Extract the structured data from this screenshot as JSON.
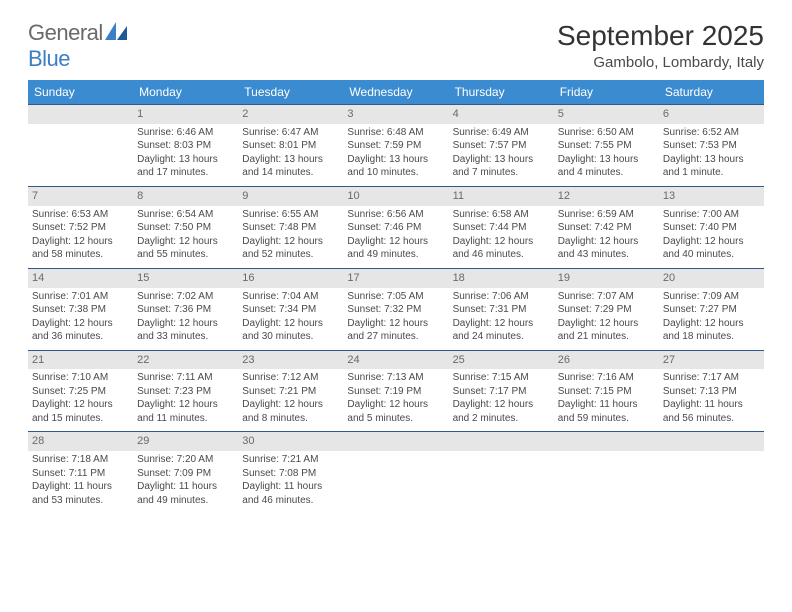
{
  "brand": {
    "general": "General",
    "blue": "Blue"
  },
  "title": "September 2025",
  "location": "Gambolo, Lombardy, Italy",
  "colors": {
    "header_bg": "#3b8bd0",
    "header_text": "#ffffff",
    "daynum_bg": "#e6e6e6",
    "daynum_text": "#6a6a6a",
    "border": "#2d5a8a",
    "body_text": "#4a4a4a",
    "logo_blue": "#3b7fc4",
    "logo_gray": "#6a6a6a"
  },
  "typography": {
    "title_fontsize": 28,
    "location_fontsize": 15,
    "header_fontsize": 12,
    "cell_fontsize": 10,
    "daynum_fontsize": 11
  },
  "weekday_headers": [
    "Sunday",
    "Monday",
    "Tuesday",
    "Wednesday",
    "Thursday",
    "Friday",
    "Saturday"
  ],
  "weeks": [
    [
      {
        "n": "",
        "sr": "",
        "ss": "",
        "dl": ""
      },
      {
        "n": "1",
        "sr": "Sunrise: 6:46 AM",
        "ss": "Sunset: 8:03 PM",
        "dl": "Daylight: 13 hours and 17 minutes."
      },
      {
        "n": "2",
        "sr": "Sunrise: 6:47 AM",
        "ss": "Sunset: 8:01 PM",
        "dl": "Daylight: 13 hours and 14 minutes."
      },
      {
        "n": "3",
        "sr": "Sunrise: 6:48 AM",
        "ss": "Sunset: 7:59 PM",
        "dl": "Daylight: 13 hours and 10 minutes."
      },
      {
        "n": "4",
        "sr": "Sunrise: 6:49 AM",
        "ss": "Sunset: 7:57 PM",
        "dl": "Daylight: 13 hours and 7 minutes."
      },
      {
        "n": "5",
        "sr": "Sunrise: 6:50 AM",
        "ss": "Sunset: 7:55 PM",
        "dl": "Daylight: 13 hours and 4 minutes."
      },
      {
        "n": "6",
        "sr": "Sunrise: 6:52 AM",
        "ss": "Sunset: 7:53 PM",
        "dl": "Daylight: 13 hours and 1 minute."
      }
    ],
    [
      {
        "n": "7",
        "sr": "Sunrise: 6:53 AM",
        "ss": "Sunset: 7:52 PM",
        "dl": "Daylight: 12 hours and 58 minutes."
      },
      {
        "n": "8",
        "sr": "Sunrise: 6:54 AM",
        "ss": "Sunset: 7:50 PM",
        "dl": "Daylight: 12 hours and 55 minutes."
      },
      {
        "n": "9",
        "sr": "Sunrise: 6:55 AM",
        "ss": "Sunset: 7:48 PM",
        "dl": "Daylight: 12 hours and 52 minutes."
      },
      {
        "n": "10",
        "sr": "Sunrise: 6:56 AM",
        "ss": "Sunset: 7:46 PM",
        "dl": "Daylight: 12 hours and 49 minutes."
      },
      {
        "n": "11",
        "sr": "Sunrise: 6:58 AM",
        "ss": "Sunset: 7:44 PM",
        "dl": "Daylight: 12 hours and 46 minutes."
      },
      {
        "n": "12",
        "sr": "Sunrise: 6:59 AM",
        "ss": "Sunset: 7:42 PM",
        "dl": "Daylight: 12 hours and 43 minutes."
      },
      {
        "n": "13",
        "sr": "Sunrise: 7:00 AM",
        "ss": "Sunset: 7:40 PM",
        "dl": "Daylight: 12 hours and 40 minutes."
      }
    ],
    [
      {
        "n": "14",
        "sr": "Sunrise: 7:01 AM",
        "ss": "Sunset: 7:38 PM",
        "dl": "Daylight: 12 hours and 36 minutes."
      },
      {
        "n": "15",
        "sr": "Sunrise: 7:02 AM",
        "ss": "Sunset: 7:36 PM",
        "dl": "Daylight: 12 hours and 33 minutes."
      },
      {
        "n": "16",
        "sr": "Sunrise: 7:04 AM",
        "ss": "Sunset: 7:34 PM",
        "dl": "Daylight: 12 hours and 30 minutes."
      },
      {
        "n": "17",
        "sr": "Sunrise: 7:05 AM",
        "ss": "Sunset: 7:32 PM",
        "dl": "Daylight: 12 hours and 27 minutes."
      },
      {
        "n": "18",
        "sr": "Sunrise: 7:06 AM",
        "ss": "Sunset: 7:31 PM",
        "dl": "Daylight: 12 hours and 24 minutes."
      },
      {
        "n": "19",
        "sr": "Sunrise: 7:07 AM",
        "ss": "Sunset: 7:29 PM",
        "dl": "Daylight: 12 hours and 21 minutes."
      },
      {
        "n": "20",
        "sr": "Sunrise: 7:09 AM",
        "ss": "Sunset: 7:27 PM",
        "dl": "Daylight: 12 hours and 18 minutes."
      }
    ],
    [
      {
        "n": "21",
        "sr": "Sunrise: 7:10 AM",
        "ss": "Sunset: 7:25 PM",
        "dl": "Daylight: 12 hours and 15 minutes."
      },
      {
        "n": "22",
        "sr": "Sunrise: 7:11 AM",
        "ss": "Sunset: 7:23 PM",
        "dl": "Daylight: 12 hours and 11 minutes."
      },
      {
        "n": "23",
        "sr": "Sunrise: 7:12 AM",
        "ss": "Sunset: 7:21 PM",
        "dl": "Daylight: 12 hours and 8 minutes."
      },
      {
        "n": "24",
        "sr": "Sunrise: 7:13 AM",
        "ss": "Sunset: 7:19 PM",
        "dl": "Daylight: 12 hours and 5 minutes."
      },
      {
        "n": "25",
        "sr": "Sunrise: 7:15 AM",
        "ss": "Sunset: 7:17 PM",
        "dl": "Daylight: 12 hours and 2 minutes."
      },
      {
        "n": "26",
        "sr": "Sunrise: 7:16 AM",
        "ss": "Sunset: 7:15 PM",
        "dl": "Daylight: 11 hours and 59 minutes."
      },
      {
        "n": "27",
        "sr": "Sunrise: 7:17 AM",
        "ss": "Sunset: 7:13 PM",
        "dl": "Daylight: 11 hours and 56 minutes."
      }
    ],
    [
      {
        "n": "28",
        "sr": "Sunrise: 7:18 AM",
        "ss": "Sunset: 7:11 PM",
        "dl": "Daylight: 11 hours and 53 minutes."
      },
      {
        "n": "29",
        "sr": "Sunrise: 7:20 AM",
        "ss": "Sunset: 7:09 PM",
        "dl": "Daylight: 11 hours and 49 minutes."
      },
      {
        "n": "30",
        "sr": "Sunrise: 7:21 AM",
        "ss": "Sunset: 7:08 PM",
        "dl": "Daylight: 11 hours and 46 minutes."
      },
      {
        "n": "",
        "sr": "",
        "ss": "",
        "dl": ""
      },
      {
        "n": "",
        "sr": "",
        "ss": "",
        "dl": ""
      },
      {
        "n": "",
        "sr": "",
        "ss": "",
        "dl": ""
      },
      {
        "n": "",
        "sr": "",
        "ss": "",
        "dl": ""
      }
    ]
  ]
}
